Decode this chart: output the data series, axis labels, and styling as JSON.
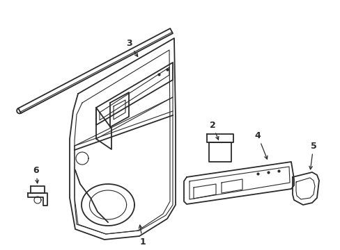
{
  "background_color": "#ffffff",
  "line_color": "#2a2a2a",
  "lw": 1.3,
  "tlw": 0.8,
  "fig_w": 4.89,
  "fig_h": 3.6,
  "dpi": 100
}
